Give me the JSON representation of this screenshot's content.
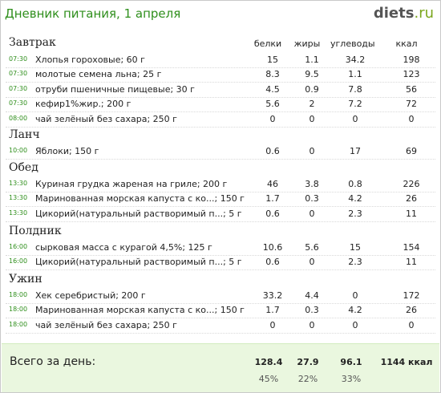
{
  "header": {
    "title": "Дневник питания, 1 апреля",
    "logo_main": "diets",
    "logo_tld": ".ru"
  },
  "columns": {
    "protein": "белки",
    "fat": "жиры",
    "carbs": "углеводы",
    "kcal": "ккал"
  },
  "sections": [
    {
      "label": "Завтрак",
      "rows": [
        {
          "time": "07:30",
          "name": "Хлопья гороховые; 60 г",
          "p": "15",
          "f": "1.1",
          "c": "34.2",
          "k": "198"
        },
        {
          "time": "07:30",
          "name": "молотые семена льна; 25 г",
          "p": "8.3",
          "f": "9.5",
          "c": "1.1",
          "k": "123"
        },
        {
          "time": "07:30",
          "name": "отруби пшеничные пищевые; 30 г",
          "p": "4.5",
          "f": "0.9",
          "c": "7.8",
          "k": "56"
        },
        {
          "time": "07:30",
          "name": "кефир1%жир.; 200 г",
          "p": "5.6",
          "f": "2",
          "c": "7.2",
          "k": "72"
        },
        {
          "time": "08:00",
          "name": "чай зелёный без сахара; 250 г",
          "p": "0",
          "f": "0",
          "c": "0",
          "k": "0"
        }
      ]
    },
    {
      "label": "Ланч",
      "rows": [
        {
          "time": "10:00",
          "name": "Яблоки; 150 г",
          "p": "0.6",
          "f": "0",
          "c": "17",
          "k": "69"
        }
      ]
    },
    {
      "label": "Обед",
      "rows": [
        {
          "time": "13:30",
          "name": "Куриная грудка жареная на гриле; 200 г",
          "p": "46",
          "f": "3.8",
          "c": "0.8",
          "k": "226"
        },
        {
          "time": "13:30",
          "name": "Маринованная морская капуста с ко...; 150 г",
          "p": "1.7",
          "f": "0.3",
          "c": "4.2",
          "k": "26"
        },
        {
          "time": "13:30",
          "name": "Цикорий(натуральный растворимый п...; 5 г",
          "p": "0.6",
          "f": "0",
          "c": "2.3",
          "k": "11"
        }
      ]
    },
    {
      "label": "Полдник",
      "rows": [
        {
          "time": "16:00",
          "name": "сырковая масса  с курагой 4,5%; 125 г",
          "p": "10.6",
          "f": "5.6",
          "c": "15",
          "k": "154"
        },
        {
          "time": "16:00",
          "name": "Цикорий(натуральный растворимый п...; 5 г",
          "p": "0.6",
          "f": "0",
          "c": "2.3",
          "k": "11"
        }
      ]
    },
    {
      "label": "Ужин",
      "rows": [
        {
          "time": "18:00",
          "name": "Хек серебристый; 200 г",
          "p": "33.2",
          "f": "4.4",
          "c": "0",
          "k": "172"
        },
        {
          "time": "18:00",
          "name": "Маринованная морская капуста с ко...; 150 г",
          "p": "1.7",
          "f": "0.3",
          "c": "4.2",
          "k": "26"
        },
        {
          "time": "18:00",
          "name": "чай зелёный без сахара; 250 г",
          "p": "0",
          "f": "0",
          "c": "0",
          "k": "0"
        }
      ]
    }
  ],
  "total": {
    "label": "Всего за день:",
    "protein": "128.4",
    "fat": "27.9",
    "carbs": "96.1",
    "kcal": "1144 ккал",
    "protein_pct": "45%",
    "fat_pct": "22%",
    "carbs_pct": "33%"
  }
}
